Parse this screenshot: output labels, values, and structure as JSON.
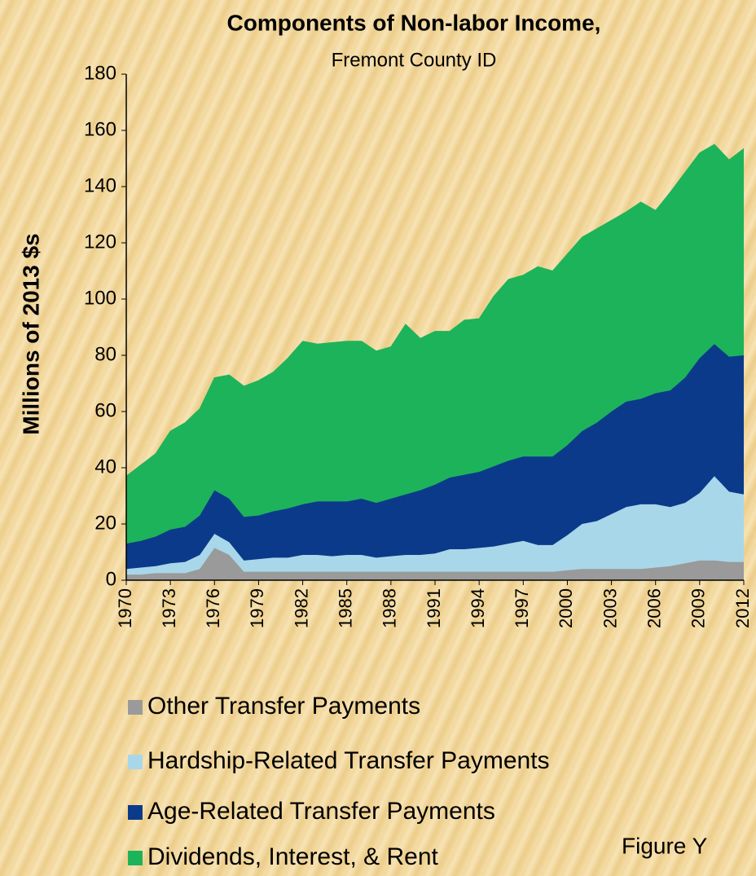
{
  "chart_data": {
    "type": "stacked_area",
    "title": "Components of Non-labor Income,",
    "subtitle": "Fremont County ID",
    "y_label": "Millions of 2013 $s",
    "annotation": "Figure Y",
    "x": [
      1970,
      1971,
      1972,
      1973,
      1974,
      1975,
      1976,
      1977,
      1978,
      1979,
      1980,
      1981,
      1982,
      1983,
      1984,
      1985,
      1986,
      1987,
      1988,
      1989,
      1990,
      1991,
      1992,
      1993,
      1994,
      1995,
      1996,
      1997,
      1998,
      1999,
      2000,
      2001,
      2002,
      2003,
      2004,
      2005,
      2006,
      2007,
      2008,
      2009,
      2010,
      2011,
      2012
    ],
    "xlim": [
      1970,
      2012
    ],
    "xticks": [
      1970,
      1973,
      1976,
      1979,
      1982,
      1985,
      1988,
      1991,
      1994,
      1997,
      2000,
      2003,
      2006,
      2009,
      2012
    ],
    "ylim": [
      0,
      180
    ],
    "yticks": [
      0,
      20,
      40,
      60,
      80,
      100,
      120,
      140,
      160,
      180
    ],
    "grid": false,
    "series": [
      {
        "name": "Other Transfer Payments",
        "color": "#9a9a9a",
        "values": [
          2,
          2,
          2.5,
          2.5,
          2.5,
          4,
          11.5,
          9,
          3,
          3,
          3,
          3,
          3,
          3,
          3,
          3,
          3,
          3,
          3,
          3,
          3,
          3,
          3,
          3,
          3,
          3,
          3,
          3,
          3,
          3,
          3.5,
          4,
          4,
          4,
          4,
          4,
          4.5,
          5,
          6,
          7,
          7,
          6.5,
          6.5
        ]
      },
      {
        "name": "Hardship-Related Transfer Payments",
        "color": "#a9d7ea",
        "values": [
          2,
          2.5,
          2.5,
          3.5,
          4,
          5,
          5,
          4.5,
          4,
          4.5,
          5,
          5,
          6,
          6,
          5.5,
          6,
          6,
          5,
          5.5,
          6,
          6,
          6.5,
          8,
          8,
          8.5,
          9,
          10,
          11,
          9.5,
          9.5,
          12.5,
          16,
          17,
          19.5,
          22,
          23,
          22.5,
          21,
          21.5,
          24,
          30,
          25,
          24
        ]
      },
      {
        "name": "Age-Related Transfer Payments",
        "color": "#0b3a8a",
        "values": [
          9,
          9.5,
          10.5,
          12,
          12.5,
          14,
          15.5,
          15.5,
          15.5,
          15.5,
          16.5,
          17.5,
          18,
          19,
          19.5,
          19,
          20,
          19.5,
          20.5,
          21.5,
          23,
          24.5,
          25.5,
          26.5,
          27,
          28.5,
          29.5,
          30,
          31.5,
          31.5,
          32,
          33,
          35,
          36.5,
          37.5,
          37.5,
          39.5,
          41.5,
          44.5,
          48,
          47,
          48,
          49.5
        ]
      },
      {
        "name": "Dividends, Interest, & Rent",
        "color": "#1db35a",
        "values": [
          24,
          27,
          29.5,
          35,
          37,
          38,
          40,
          44,
          46.5,
          48,
          49.5,
          53.5,
          58,
          56,
          56.5,
          57,
          56,
          54,
          54,
          60.5,
          54,
          54.5,
          52,
          55,
          54.5,
          60.5,
          64.5,
          64.5,
          67.5,
          66,
          68,
          69,
          69,
          68,
          67.5,
          70,
          65,
          70.5,
          73,
          73,
          71,
          70,
          73.5
        ]
      }
    ]
  }
}
